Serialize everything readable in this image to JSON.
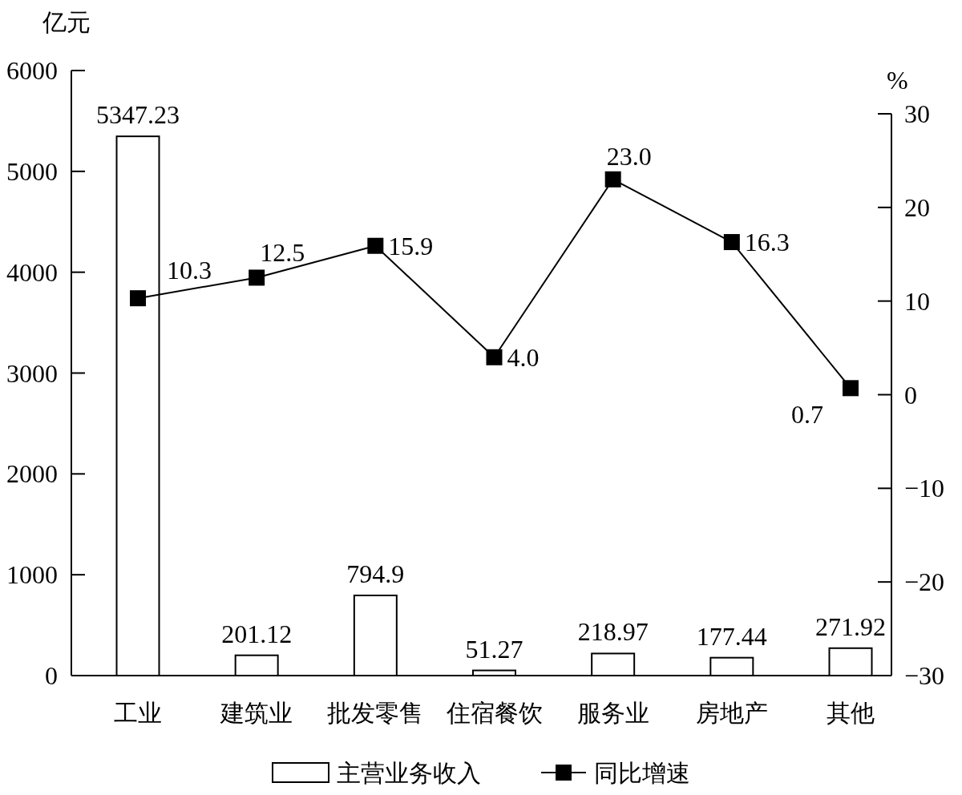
{
  "chart_data": {
    "type": "bar",
    "categories": [
      "工业",
      "建筑业",
      "批发零售",
      "住宿餐饮",
      "服务业",
      "房地产",
      "其他"
    ],
    "ylabel": "亿元",
    "y2label": "%",
    "ylim": [
      0,
      6000
    ],
    "yticks": [
      0,
      1000,
      2000,
      3000,
      4000,
      5000,
      6000
    ],
    "y2lim": [
      -30,
      30
    ],
    "y2ticks": [
      -30,
      -20,
      -10,
      0,
      10,
      20,
      30
    ],
    "legend": "bottom",
    "series": [
      {
        "name": "主营业务收入",
        "color": "#ffffff",
        "values": [
          5347.23,
          201.12,
          794.9,
          51.27,
          218.97,
          177.44,
          271.92
        ],
        "value_labels": [
          "5347.23",
          "201.12",
          "794.9",
          "51.27",
          "218.97",
          "177.44",
          "271.92"
        ]
      },
      {
        "name": "同比增速",
        "type": "line",
        "axis": "y2",
        "color": "#000000",
        "marker": "square",
        "line_style": "solid",
        "values": [
          10.3,
          12.5,
          15.9,
          4.0,
          23.0,
          16.3,
          0.7
        ],
        "value_labels": [
          "10.3",
          "12.5",
          "15.9",
          "4.0",
          "23.0",
          "16.3",
          "0.7"
        ]
      }
    ]
  }
}
